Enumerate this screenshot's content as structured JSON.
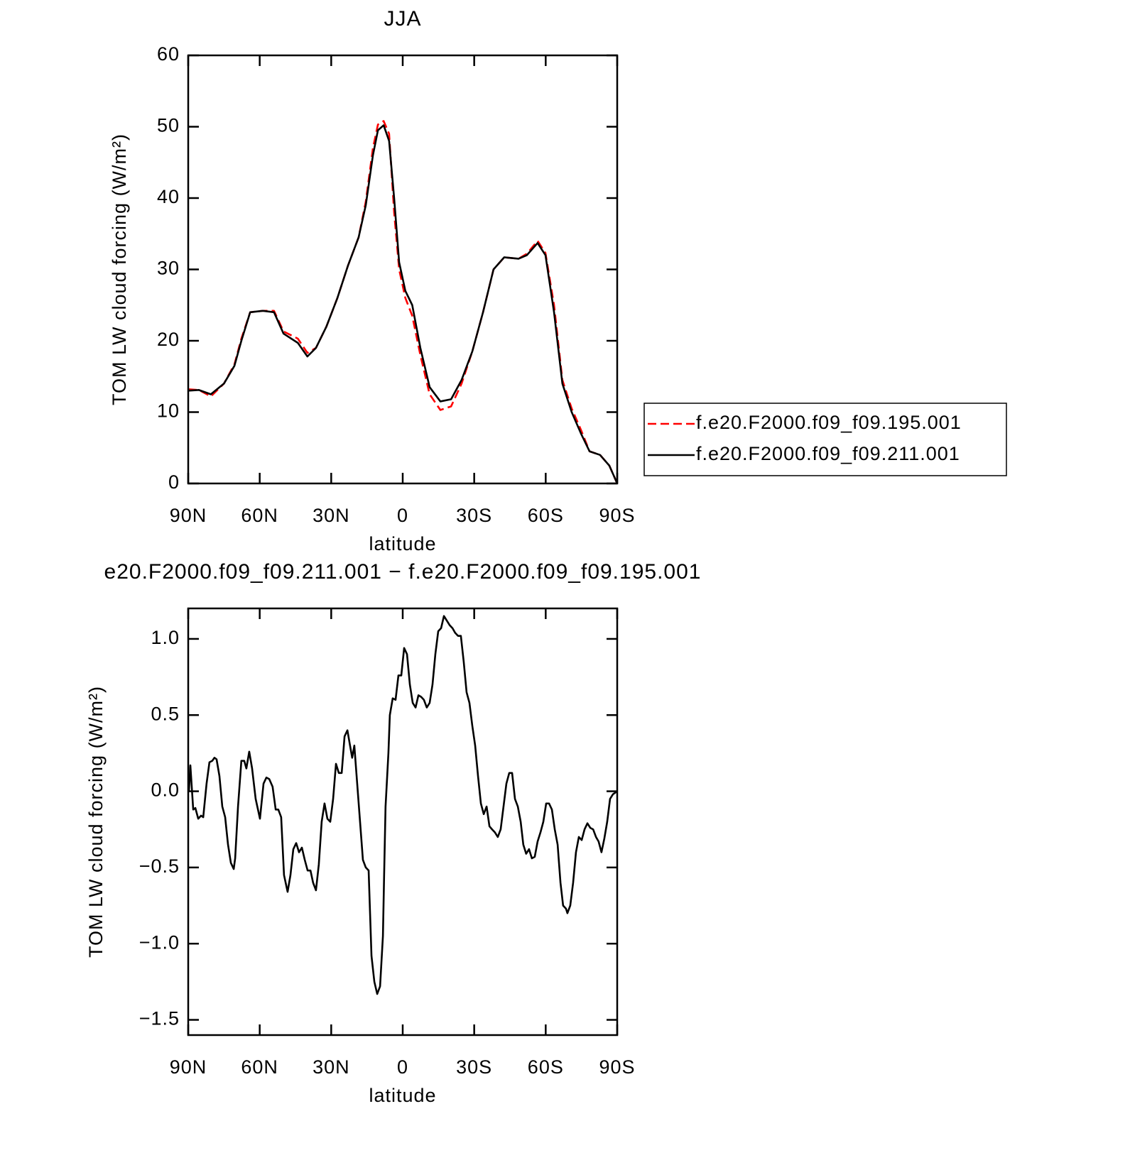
{
  "chart_data": [
    {
      "type": "line",
      "title": "JJA",
      "xlabel": "latitude",
      "ylabel": "TOM LW cloud forcing (W/m²)",
      "x": [
        90,
        85.5,
        80.5,
        75,
        70.6,
        67.7,
        64,
        58.7,
        54,
        50,
        44,
        40,
        36.4,
        32,
        27.4,
        23,
        18.5,
        15.5,
        12.5,
        10.4,
        8,
        5.7,
        3.6,
        1.5,
        -1.1,
        -4,
        -7.4,
        -11.3,
        -15.8,
        -20.3,
        -24.7,
        -29.2,
        -33.7,
        -38.1,
        -42.6,
        -48.6,
        -52.1,
        -56.6,
        -59.9,
        -63.5,
        -67,
        -70.9,
        -74.8,
        -78.4,
        -82.8,
        -86.7,
        -90
      ],
      "series": [
        {
          "name": "f.e20.F2000.f09_f09.195.001",
          "color": "#ff0000",
          "dash": "dashed",
          "values": [
            13.2,
            13.1,
            12.2,
            14,
            16.7,
            20.3,
            24,
            24.2,
            24.2,
            21.3,
            20.3,
            18.3,
            19,
            22,
            26,
            30.5,
            34.5,
            39.5,
            47,
            50.3,
            50.8,
            49,
            38,
            30,
            26,
            23.5,
            18,
            12.5,
            10.3,
            10.8,
            14,
            18.5,
            24,
            30,
            31.7,
            31.5,
            32.2,
            34,
            32.3,
            25,
            14.5,
            10.5,
            7.5,
            4.5,
            4,
            2.5,
            0
          ]
        },
        {
          "name": "f.e20.F2000.f09_f09.211.001",
          "color": "#000000",
          "dash": "solid",
          "values": [
            13,
            13.1,
            12.5,
            14,
            16.5,
            20,
            24,
            24.2,
            24,
            21,
            19.7,
            17.8,
            19,
            22,
            26,
            30.5,
            34.5,
            39,
            46,
            49.5,
            50.2,
            48,
            40,
            31,
            27,
            25,
            19,
            13.5,
            11.5,
            11.8,
            14.5,
            18.5,
            24,
            30,
            31.7,
            31.5,
            32,
            33.7,
            32,
            24,
            14,
            10,
            7,
            4.5,
            4,
            2.5,
            0
          ]
        }
      ],
      "xlim": [
        90,
        -90
      ],
      "xticks": [
        {
          "value": 90,
          "label": "90N"
        },
        {
          "value": 60,
          "label": "60N"
        },
        {
          "value": 30,
          "label": "30N"
        },
        0,
        {
          "value": -30,
          "label": "30S"
        },
        {
          "value": -60,
          "label": "60S"
        },
        {
          "value": -90,
          "label": "90S"
        }
      ],
      "ylim": [
        0,
        60
      ],
      "yticks": [
        0,
        10,
        20,
        30,
        40,
        50,
        60
      ],
      "legend": "right"
    },
    {
      "type": "line",
      "title": "e20.F2000.f09_f09.211.001 − f.e20.F2000.f09_f09.195.001",
      "xlabel": "latitude",
      "ylabel": "TOM LW cloud forcing (W/m²)",
      "x": [
        89.7,
        89.1,
        87.9,
        87.0,
        85.8,
        84.6,
        83.7,
        82.3,
        81.1,
        79.9,
        79.0,
        78.1,
        76.9,
        75.7,
        74.5,
        73.3,
        72.1,
        70.9,
        70.3,
        69.1,
        67.7,
        66.5,
        65.6,
        64.4,
        63.2,
        61.7,
        59.9,
        58.4,
        57.2,
        56.0,
        54.6,
        53.3,
        52.2,
        51.0,
        49.8,
        48.3,
        47.1,
        45.9,
        44.7,
        43.5,
        42.3,
        41.1,
        39.9,
        38.7,
        37.6,
        36.4,
        35.2,
        34.0,
        32.8,
        31.6,
        30.4,
        29.2,
        28.0,
        26.8,
        25.6,
        24.4,
        23.2,
        22.1,
        21.2,
        20.3,
        19.1,
        17.9,
        16.7,
        15.5,
        14.3,
        13.1,
        11.9,
        10.7,
        9.5,
        8.3,
        7.8,
        7.2,
        6.0,
        5.4,
        4.2,
        3.0,
        1.8,
        0.6,
        -0.6,
        -1.8,
        -3.0,
        -4.2,
        -5.4,
        -6.6,
        -7.7,
        -8.9,
        -10.1,
        -11.3,
        -12.5,
        -13.7,
        -14.9,
        -16.1,
        -17.3,
        -18.5,
        -19.7,
        -20.9,
        -22.0,
        -23.2,
        -24.4,
        -25.6,
        -26.8,
        -28.0,
        -29.2,
        -30.4,
        -31.6,
        -32.8,
        -34.0,
        -35.2,
        -36.4,
        -37.5,
        -38.7,
        -39.9,
        -41.1,
        -42.3,
        -43.5,
        -44.7,
        -45.9,
        -47.1,
        -48.3,
        -49.5,
        -50.6,
        -51.8,
        -53.0,
        -54.2,
        -55.4,
        -56.6,
        -57.8,
        -59.0,
        -60.2,
        -61.4,
        -62.6,
        -63.8,
        -65.0,
        -66.2,
        -67.3,
        -68.5,
        -69.1,
        -70.3,
        -71.5,
        -72.7,
        -73.9,
        -75.1,
        -76.3,
        -77.5,
        -78.7,
        -79.9,
        -81.1,
        -82.2,
        -83.4,
        -84.6,
        -85.8,
        -87.0,
        -88.2,
        -90
      ],
      "values": [
        0.0,
        0.17,
        -0.12,
        -0.11,
        -0.18,
        -0.16,
        -0.17,
        0.05,
        0.19,
        0.2,
        0.22,
        0.21,
        0.1,
        -0.1,
        -0.17,
        -0.35,
        -0.47,
        -0.51,
        -0.44,
        -0.1,
        0.2,
        0.2,
        0.15,
        0.26,
        0.15,
        -0.05,
        -0.18,
        0.05,
        0.09,
        0.08,
        0.03,
        -0.12,
        -0.12,
        -0.17,
        -0.55,
        -0.66,
        -0.55,
        -0.38,
        -0.34,
        -0.4,
        -0.37,
        -0.45,
        -0.52,
        -0.52,
        -0.6,
        -0.65,
        -0.48,
        -0.2,
        -0.08,
        -0.18,
        -0.2,
        -0.05,
        0.18,
        0.12,
        0.12,
        0.36,
        0.4,
        0.3,
        0.22,
        0.3,
        0.05,
        -0.2,
        -0.45,
        -0.5,
        -0.52,
        -1.08,
        -1.25,
        -1.33,
        -1.28,
        -0.95,
        -0.55,
        -0.1,
        0.25,
        0.5,
        0.61,
        0.6,
        0.76,
        0.76,
        0.94,
        0.9,
        0.7,
        0.58,
        0.55,
        0.63,
        0.62,
        0.6,
        0.55,
        0.58,
        0.7,
        0.9,
        1.05,
        1.07,
        1.15,
        1.12,
        1.09,
        1.07,
        1.04,
        1.02,
        1.02,
        0.85,
        0.65,
        0.58,
        0.43,
        0.3,
        0.1,
        -0.08,
        -0.15,
        -0.1,
        -0.23,
        -0.25,
        -0.27,
        -0.3,
        -0.25,
        -0.1,
        0.05,
        0.12,
        0.12,
        -0.05,
        -0.1,
        -0.2,
        -0.35,
        -0.41,
        -0.38,
        -0.44,
        -0.43,
        -0.33,
        -0.27,
        -0.2,
        -0.08,
        -0.08,
        -0.12,
        -0.25,
        -0.35,
        -0.6,
        -0.75,
        -0.77,
        -0.8,
        -0.75,
        -0.6,
        -0.4,
        -0.3,
        -0.32,
        -0.25,
        -0.21,
        -0.24,
        -0.25,
        -0.3,
        -0.33,
        -0.4,
        -0.31,
        -0.2,
        -0.05,
        -0.02,
        0.0
      ],
      "color": "#000000",
      "xlim": [
        90,
        -90
      ],
      "xticks": [
        {
          "value": 90,
          "label": "90N"
        },
        {
          "value": 60,
          "label": "60N"
        },
        {
          "value": 30,
          "label": "30N"
        },
        0,
        {
          "value": -30,
          "label": "30S"
        },
        {
          "value": -60,
          "label": "60S"
        },
        {
          "value": -90,
          "label": "90S"
        }
      ],
      "ylim": [
        -1.6,
        1.2
      ],
      "yticks": [
        {
          "value": -1.5,
          "label": "−1.5"
        },
        {
          "value": -1,
          "label": "−1.0"
        },
        {
          "value": -0.5,
          "label": "−0.5"
        },
        {
          "value": 0,
          "label": "0.0"
        },
        0.5,
        {
          "value": 1,
          "label": "1.0"
        }
      ]
    }
  ]
}
